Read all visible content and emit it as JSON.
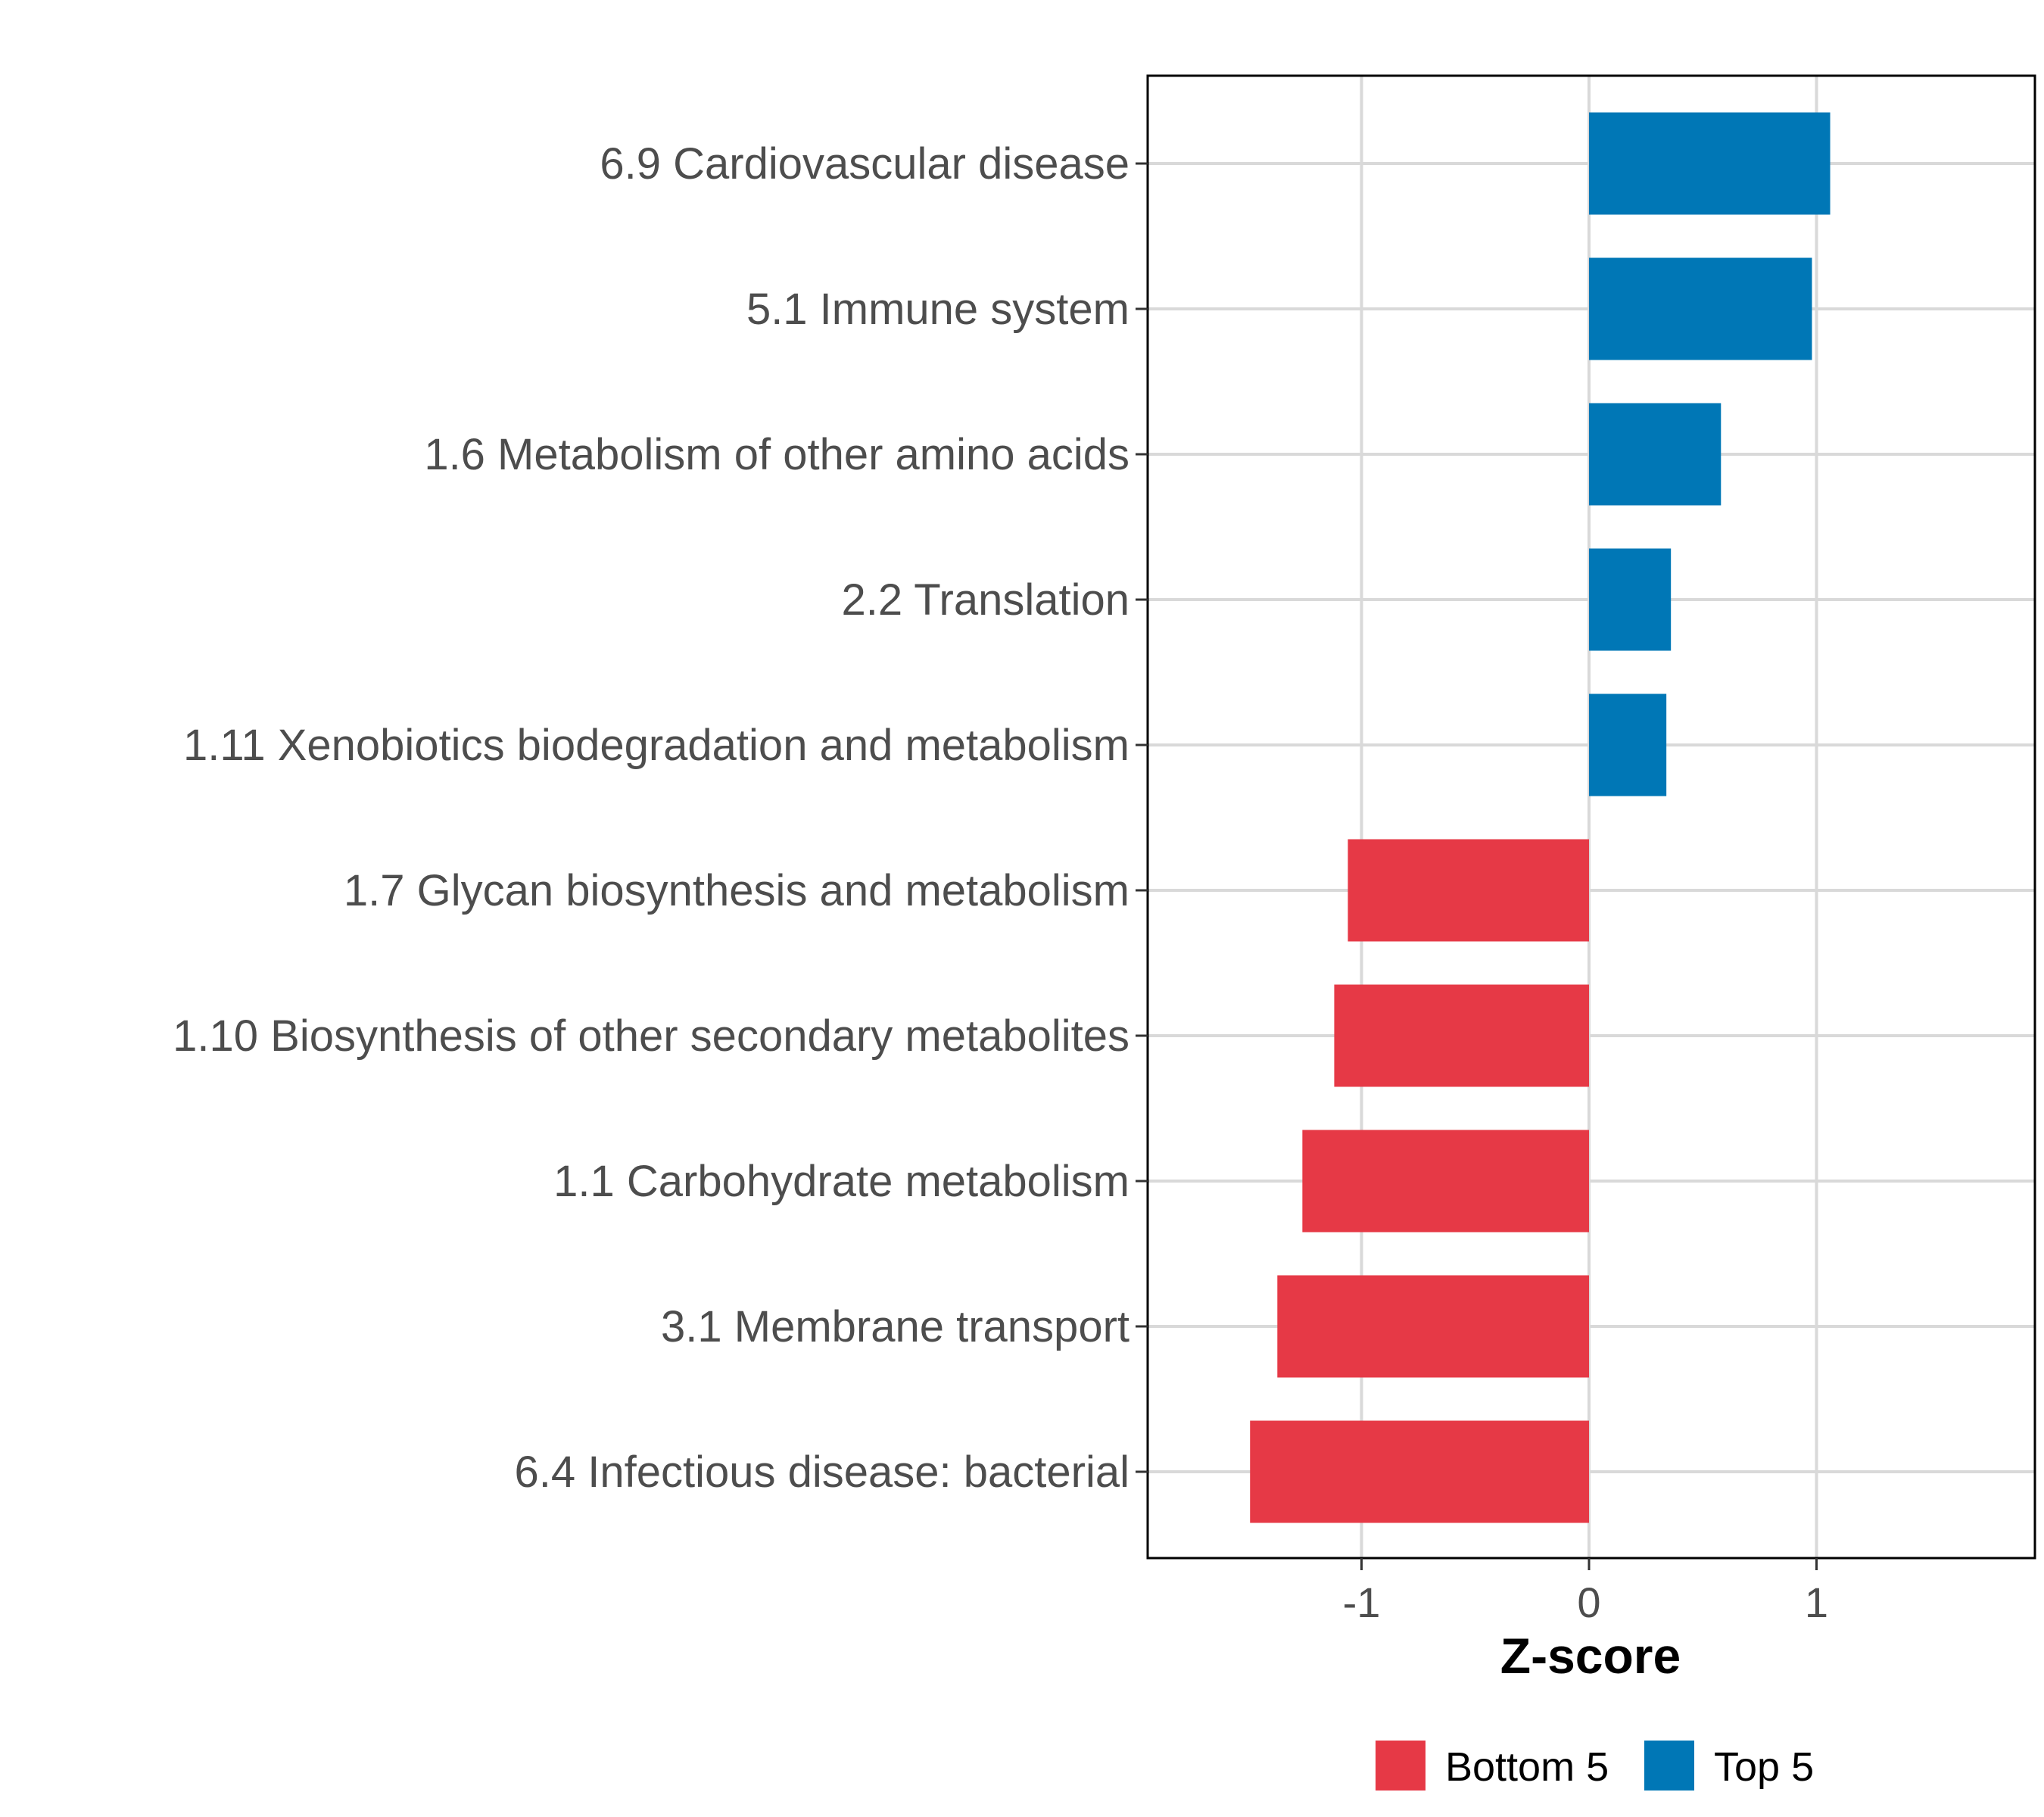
{
  "chart_data": {
    "type": "bar",
    "orientation": "horizontal",
    "title": "",
    "xlabel": "Z-score",
    "ylabel": "",
    "xlim": [
      -1.94,
      1.96
    ],
    "xticks": [
      -1,
      0,
      1
    ],
    "xtick_labels": [
      "-1",
      "0",
      "1"
    ],
    "grid": true,
    "categories": [
      "6.9 Cardiovascular disease",
      "5.1 Immune system",
      "1.6 Metabolism of other amino acids",
      "2.2 Translation",
      "1.11 Xenobiotics biodegradation and metabolism",
      "1.7 Glycan biosynthesis and metabolism",
      "1.10 Biosynthesis of other secondary metabolites",
      "1.1 Carbohydrate metabolism",
      "3.1 Membrane transport",
      "6.4 Infectious disease: bacterial"
    ],
    "values": [
      1.06,
      0.98,
      0.58,
      0.36,
      0.34,
      -1.06,
      -1.12,
      -1.26,
      -1.37,
      -1.49
    ],
    "groups": [
      "Top 5",
      "Top 5",
      "Top 5",
      "Top 5",
      "Top 5",
      "Bottom 5",
      "Bottom 5",
      "Bottom 5",
      "Bottom 5",
      "Bottom 5"
    ],
    "legend": {
      "position": "bottom",
      "entries": [
        {
          "label": "Bottom 5",
          "color": "#E63946"
        },
        {
          "label": "Top 5",
          "color": "#0077B6"
        }
      ]
    },
    "colors": {
      "Bottom 5": "#E63946",
      "Top 5": "#0077B6"
    }
  }
}
